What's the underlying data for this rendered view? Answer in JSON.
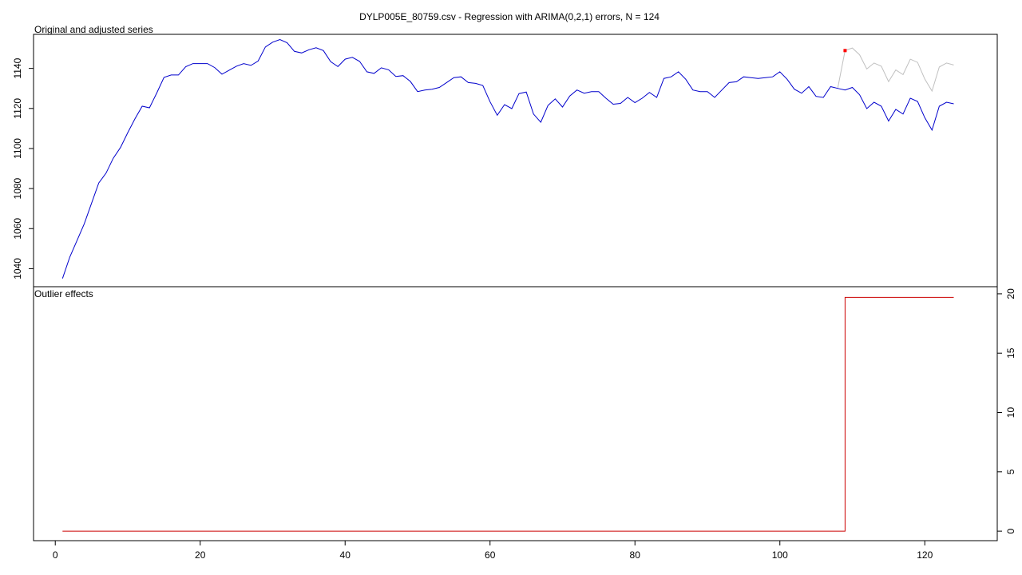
{
  "chart_data": [
    {
      "type": "line",
      "title": "DYLP005E_80759.csv - Regression with ARIMA(0,2,1) errors, N = 124",
      "panel_label": "Original and adjusted series",
      "xlim": [
        -3,
        130
      ],
      "ylim": [
        1031,
        1157
      ],
      "y_ticks": [
        1040,
        1060,
        1080,
        1100,
        1120,
        1140
      ],
      "grid": false,
      "series": [
        {
          "role": "original",
          "color": "#c0c0c0",
          "x": [
            108,
            109,
            110,
            111,
            112,
            113,
            114,
            115,
            116,
            117,
            118,
            119,
            120,
            121,
            122,
            123,
            124
          ],
          "values": [
            1130.3,
            1148.9,
            1150.2,
            1146.8,
            1139.7,
            1142.7,
            1141.1,
            1133.4,
            1139.2,
            1136.9,
            1144.6,
            1143.0,
            1134.7,
            1128.7,
            1140.7,
            1142.7,
            1141.7
          ]
        },
        {
          "role": "adjusted",
          "color": "#0000cc",
          "x": [
            1,
            2,
            3,
            4,
            5,
            6,
            7,
            8,
            9,
            10,
            11,
            12,
            13,
            14,
            15,
            16,
            17,
            18,
            19,
            20,
            21,
            22,
            23,
            24,
            25,
            26,
            27,
            28,
            29,
            30,
            31,
            32,
            33,
            34,
            35,
            36,
            37,
            38,
            39,
            40,
            41,
            42,
            43,
            44,
            45,
            46,
            47,
            48,
            49,
            50,
            51,
            52,
            53,
            54,
            55,
            56,
            57,
            58,
            59,
            60,
            61,
            62,
            63,
            64,
            65,
            66,
            67,
            68,
            69,
            70,
            71,
            72,
            73,
            74,
            75,
            76,
            77,
            78,
            79,
            80,
            81,
            82,
            83,
            84,
            85,
            86,
            87,
            88,
            89,
            90,
            91,
            92,
            93,
            94,
            95,
            96,
            97,
            98,
            99,
            100,
            101,
            102,
            103,
            104,
            105,
            106,
            107,
            108,
            109,
            110,
            111,
            112,
            113,
            114,
            115,
            116,
            117,
            118,
            119,
            120,
            121,
            122,
            123,
            124
          ],
          "values": [
            1035.1,
            1045.8,
            1054.1,
            1062.4,
            1072.6,
            1082.8,
            1087.7,
            1095.1,
            1100.5,
            1107.9,
            1114.9,
            1121.1,
            1120.3,
            1127.7,
            1135.5,
            1136.7,
            1136.7,
            1140.8,
            1142.4,
            1142.4,
            1142.4,
            1140.4,
            1137.1,
            1139.1,
            1141.1,
            1142.4,
            1141.5,
            1143.7,
            1150.7,
            1153.1,
            1154.4,
            1152.8,
            1148.5,
            1147.7,
            1149.3,
            1150.3,
            1148.9,
            1143.4,
            1140.9,
            1144.6,
            1145.5,
            1143.5,
            1138.3,
            1137.5,
            1140.3,
            1139.3,
            1136.0,
            1136.4,
            1133.5,
            1128.4,
            1129.2,
            1129.6,
            1130.5,
            1132.9,
            1135.4,
            1135.8,
            1132.9,
            1132.5,
            1131.5,
            1123.4,
            1116.6,
            1121.9,
            1119.9,
            1127.4,
            1128.2,
            1117.2,
            1113.1,
            1121.5,
            1124.8,
            1120.7,
            1126.2,
            1129.2,
            1127.6,
            1128.4,
            1128.4,
            1125.1,
            1122.1,
            1122.5,
            1125.5,
            1122.9,
            1125.1,
            1128.0,
            1125.5,
            1135.0,
            1135.8,
            1138.3,
            1134.6,
            1129.2,
            1128.4,
            1128.4,
            1125.5,
            1129.2,
            1132.9,
            1133.3,
            1135.8,
            1135.4,
            1135.0,
            1135.4,
            1135.8,
            1138.3,
            1134.6,
            1129.6,
            1127.6,
            1130.9,
            1126.0,
            1125.5,
            1130.9,
            1130.0,
            1129.2,
            1130.5,
            1126.8,
            1119.9,
            1123.1,
            1121.1,
            1113.7,
            1119.5,
            1117.2,
            1125.1,
            1123.5,
            1115.4,
            1109.2,
            1121.1,
            1123.1,
            1122.3
          ]
        }
      ],
      "outlier_point": {
        "x": 109,
        "y": 1148.9,
        "color": "#ff0000"
      }
    },
    {
      "type": "line",
      "panel_label": "Outlier effects",
      "xlabel": "",
      "xlim": [
        -3,
        130
      ],
      "ylim": [
        -0.8,
        20.6
      ],
      "x_ticks": [
        0,
        20,
        40,
        60,
        80,
        100,
        120
      ],
      "y_ticks": [
        0,
        5,
        10,
        15,
        20
      ],
      "grid": false,
      "series": [
        {
          "role": "effect",
          "color": "#cc0000",
          "x": [
            1,
            109,
            109,
            124
          ],
          "values": [
            0,
            0,
            19.7,
            19.7
          ]
        }
      ]
    }
  ]
}
